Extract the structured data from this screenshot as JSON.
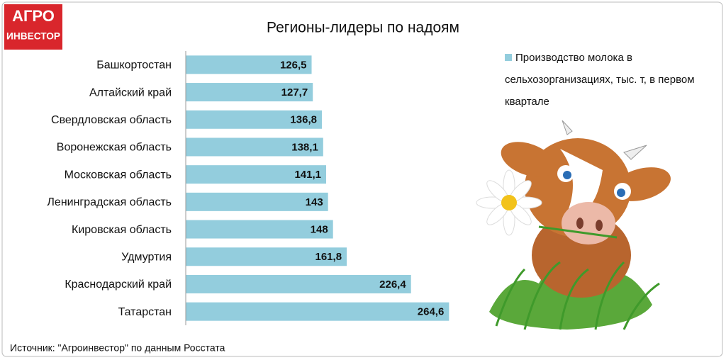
{
  "logo": [
    "АГРО",
    "ИНВЕСТОР"
  ],
  "chart_data": {
    "type": "bar",
    "orientation": "horizontal",
    "title": "Регионы-лидеры по надоям",
    "categories": [
      "Башкортостан",
      "Алтайский край",
      "Свердловская область",
      "Воронежская область",
      "Московская область",
      "Ленинградская область",
      "Кировская область",
      "Удмуртия",
      "Краснодарский край",
      "Татарстан"
    ],
    "series": [
      {
        "name": "Производство молока в сельхозорганизациях, тыс. т, в первом квартале",
        "color": "#93cddd",
        "values": [
          126.5,
          127.7,
          136.8,
          138.1,
          141.1,
          143,
          148,
          161.8,
          226.4,
          264.6
        ],
        "value_labels": [
          "126,5",
          "127,7",
          "136,8",
          "138,1",
          "141,1",
          "143",
          "148",
          "161,8",
          "226,4",
          "264,6"
        ]
      }
    ],
    "xlim": [
      0,
      300
    ],
    "legend": "right",
    "source": "Источник: \"Агроинвестор\" по данным Росстата"
  }
}
